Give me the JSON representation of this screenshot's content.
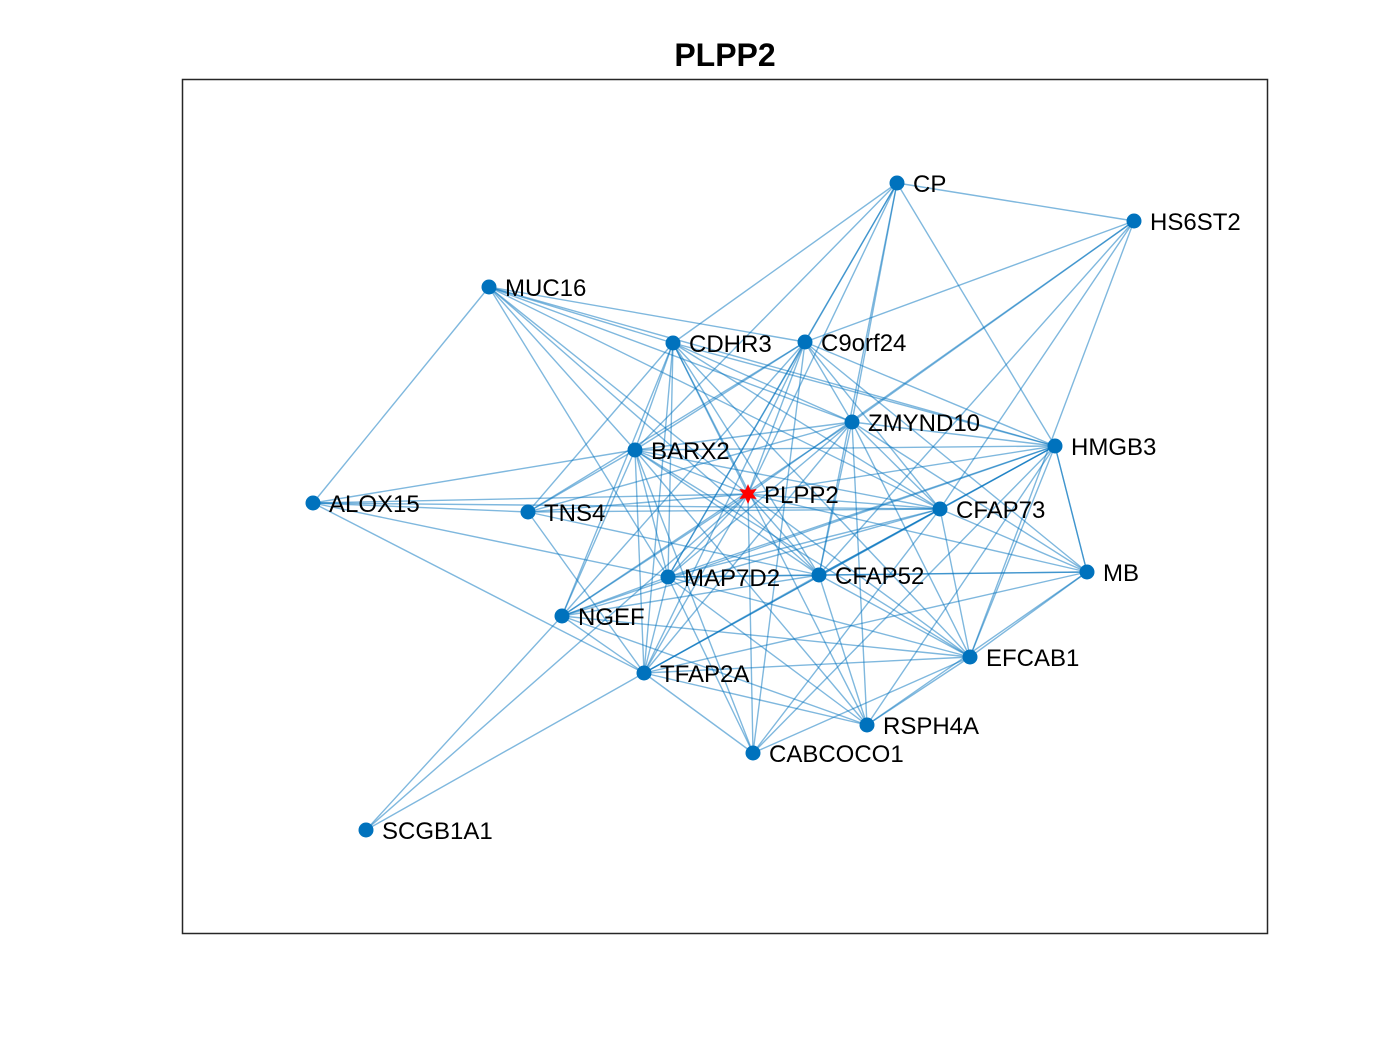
{
  "title": "PLPP2",
  "colors": {
    "edge": "#0072BD",
    "node": "#0072BD",
    "center_node": "#FF0000",
    "frame": "#262626"
  },
  "nodes": [
    {
      "id": "PLPP2",
      "label": "PLPP2",
      "center": true
    },
    {
      "id": "CP",
      "label": "CP"
    },
    {
      "id": "HS6ST2",
      "label": "HS6ST2"
    },
    {
      "id": "MUC16",
      "label": "MUC16"
    },
    {
      "id": "CDHR3",
      "label": "CDHR3"
    },
    {
      "id": "C9orf24",
      "label": "C9orf24"
    },
    {
      "id": "ZMYND10",
      "label": "ZMYND10"
    },
    {
      "id": "HMGB3",
      "label": "HMGB3"
    },
    {
      "id": "BARX2",
      "label": "BARX2"
    },
    {
      "id": "ALOX15",
      "label": "ALOX15"
    },
    {
      "id": "TNS4",
      "label": "TNS4"
    },
    {
      "id": "CFAP73",
      "label": "CFAP73"
    },
    {
      "id": "MB",
      "label": "MB"
    },
    {
      "id": "MAP7D2",
      "label": "MAP7D2"
    },
    {
      "id": "CFAP52",
      "label": "CFAP52"
    },
    {
      "id": "NGEF",
      "label": "NGEF"
    },
    {
      "id": "EFCAB1",
      "label": "EFCAB1"
    },
    {
      "id": "TFAP2A",
      "label": "TFAP2A"
    },
    {
      "id": "RSPH4A",
      "label": "RSPH4A"
    },
    {
      "id": "CABCOCO1",
      "label": "CABCOCO1"
    },
    {
      "id": "SCGB1A1",
      "label": "SCGB1A1"
    }
  ],
  "edges": [
    [
      "CP",
      "HS6ST2"
    ],
    [
      "CP",
      "CDHR3"
    ],
    [
      "CP",
      "C9orf24"
    ],
    [
      "CP",
      "ZMYND10"
    ],
    [
      "CP",
      "PLPP2"
    ],
    [
      "CP",
      "BARX2"
    ],
    [
      "CP",
      "HMGB3"
    ],
    [
      "CP",
      "MAP7D2"
    ],
    [
      "CP",
      "CFAP52"
    ],
    [
      "HS6ST2",
      "C9orf24"
    ],
    [
      "HS6ST2",
      "ZMYND10"
    ],
    [
      "HS6ST2",
      "PLPP2"
    ],
    [
      "HS6ST2",
      "CFAP73"
    ],
    [
      "HS6ST2",
      "EFCAB1"
    ],
    [
      "HS6ST2",
      "CFAP52"
    ],
    [
      "MUC16",
      "ALOX15"
    ],
    [
      "MUC16",
      "CDHR3"
    ],
    [
      "MUC16",
      "C9orf24"
    ],
    [
      "MUC16",
      "ZMYND10"
    ],
    [
      "MUC16",
      "HMGB3"
    ],
    [
      "MUC16",
      "BARX2"
    ],
    [
      "MUC16",
      "PLPP2"
    ],
    [
      "MUC16",
      "CFAP73"
    ],
    [
      "MUC16",
      "MAP7D2"
    ],
    [
      "MUC16",
      "CFAP52"
    ],
    [
      "CDHR3",
      "BARX2"
    ],
    [
      "CDHR3",
      "TNS4"
    ],
    [
      "CDHR3",
      "PLPP2"
    ],
    [
      "CDHR3",
      "MAP7D2"
    ],
    [
      "CDHR3",
      "NGEF"
    ],
    [
      "CDHR3",
      "TFAP2A"
    ],
    [
      "CDHR3",
      "CFAP52"
    ],
    [
      "CDHR3",
      "CFAP73"
    ],
    [
      "CDHR3",
      "ZMYND10"
    ],
    [
      "CDHR3",
      "HMGB3"
    ],
    [
      "CDHR3",
      "EFCAB1"
    ],
    [
      "CDHR3",
      "RSPH4A"
    ],
    [
      "C9orf24",
      "ZMYND10"
    ],
    [
      "C9orf24",
      "BARX2"
    ],
    [
      "C9orf24",
      "TNS4"
    ],
    [
      "C9orf24",
      "MAP7D2"
    ],
    [
      "C9orf24",
      "NGEF"
    ],
    [
      "C9orf24",
      "TFAP2A"
    ],
    [
      "C9orf24",
      "CFAP73"
    ],
    [
      "C9orf24",
      "HMGB3"
    ],
    [
      "C9orf24",
      "MB"
    ],
    [
      "C9orf24",
      "PLPP2"
    ],
    [
      "C9orf24",
      "CABCOCO1"
    ],
    [
      "ZMYND10",
      "BARX2"
    ],
    [
      "ZMYND10",
      "NGEF"
    ],
    [
      "ZMYND10",
      "MAP7D2"
    ],
    [
      "ZMYND10",
      "TFAP2A"
    ],
    [
      "ZMYND10",
      "CFAP52"
    ],
    [
      "ZMYND10",
      "CFAP73"
    ],
    [
      "ZMYND10",
      "MB"
    ],
    [
      "ZMYND10",
      "EFCAB1"
    ],
    [
      "ZMYND10",
      "RSPH4A"
    ],
    [
      "ZMYND10",
      "HMGB3"
    ],
    [
      "ZMYND10",
      "TNS4"
    ],
    [
      "HMGB3",
      "BARX2"
    ],
    [
      "HMGB3",
      "PLPP2"
    ],
    [
      "HMGB3",
      "MAP7D2"
    ],
    [
      "HMGB3",
      "NGEF"
    ],
    [
      "HMGB3",
      "TFAP2A"
    ],
    [
      "HMGB3",
      "CFAP52"
    ],
    [
      "HMGB3",
      "CABCOCO1"
    ],
    [
      "HMGB3",
      "RSPH4A"
    ],
    [
      "HMGB3",
      "EFCAB1"
    ],
    [
      "HMGB3",
      "MB"
    ],
    [
      "BARX2",
      "ALOX15"
    ],
    [
      "BARX2",
      "TNS4"
    ],
    [
      "BARX2",
      "NGEF"
    ],
    [
      "BARX2",
      "TFAP2A"
    ],
    [
      "BARX2",
      "CFAP52"
    ],
    [
      "BARX2",
      "CFAP73"
    ],
    [
      "BARX2",
      "EFCAB1"
    ],
    [
      "BARX2",
      "RSPH4A"
    ],
    [
      "BARX2",
      "CABCOCO1"
    ],
    [
      "BARX2",
      "PLPP2"
    ],
    [
      "BARX2",
      "MAP7D2"
    ],
    [
      "ALOX15",
      "TNS4"
    ],
    [
      "ALOX15",
      "PLPP2"
    ],
    [
      "ALOX15",
      "CFAP73"
    ],
    [
      "ALOX15",
      "MAP7D2"
    ],
    [
      "ALOX15",
      "TFAP2A"
    ],
    [
      "TNS4",
      "PLPP2"
    ],
    [
      "TNS4",
      "CFAP73"
    ],
    [
      "TNS4",
      "CFAP52"
    ],
    [
      "TNS4",
      "TFAP2A"
    ],
    [
      "PLPP2",
      "CFAP73"
    ],
    [
      "PLPP2",
      "MB"
    ],
    [
      "PLPP2",
      "MAP7D2"
    ],
    [
      "PLPP2",
      "CFAP52"
    ],
    [
      "PLPP2",
      "NGEF"
    ],
    [
      "PLPP2",
      "TFAP2A"
    ],
    [
      "PLPP2",
      "EFCAB1"
    ],
    [
      "PLPP2",
      "CABCOCO1"
    ],
    [
      "PLPP2",
      "SCGB1A1"
    ],
    [
      "CFAP73",
      "MAP7D2"
    ],
    [
      "CFAP73",
      "CFAP52"
    ],
    [
      "CFAP73",
      "NGEF"
    ],
    [
      "CFAP73",
      "TFAP2A"
    ],
    [
      "CFAP73",
      "MB"
    ],
    [
      "CFAP73",
      "EFCAB1"
    ],
    [
      "CFAP73",
      "CABCOCO1"
    ],
    [
      "CFAP73",
      "HMGB3"
    ],
    [
      "MB",
      "MAP7D2"
    ],
    [
      "MB",
      "CFAP52"
    ],
    [
      "MB",
      "EFCAB1"
    ],
    [
      "MB",
      "RSPH4A"
    ],
    [
      "MB",
      "TFAP2A"
    ],
    [
      "MB",
      "HMGB3"
    ],
    [
      "MAP7D2",
      "CFAP52"
    ],
    [
      "MAP7D2",
      "NGEF"
    ],
    [
      "MAP7D2",
      "TFAP2A"
    ],
    [
      "MAP7D2",
      "EFCAB1"
    ],
    [
      "MAP7D2",
      "RSPH4A"
    ],
    [
      "MAP7D2",
      "CABCOCO1"
    ],
    [
      "CFAP52",
      "NGEF"
    ],
    [
      "CFAP52",
      "TFAP2A"
    ],
    [
      "CFAP52",
      "EFCAB1"
    ],
    [
      "CFAP52",
      "RSPH4A"
    ],
    [
      "NGEF",
      "TFAP2A"
    ],
    [
      "NGEF",
      "EFCAB1"
    ],
    [
      "NGEF",
      "RSPH4A"
    ],
    [
      "NGEF",
      "SCGB1A1"
    ],
    [
      "EFCAB1",
      "TFAP2A"
    ],
    [
      "EFCAB1",
      "CABCOCO1"
    ],
    [
      "EFCAB1",
      "RSPH4A"
    ],
    [
      "TFAP2A",
      "RSPH4A"
    ],
    [
      "TFAP2A",
      "CABCOCO1"
    ],
    [
      "TFAP2A",
      "SCGB1A1"
    ]
  ]
}
